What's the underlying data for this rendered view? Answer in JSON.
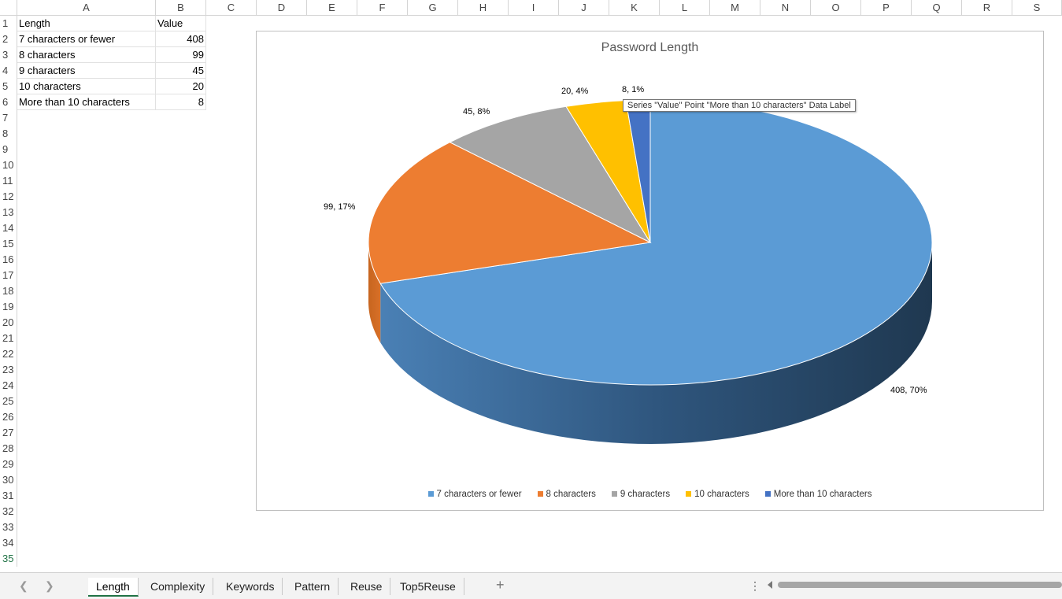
{
  "columns": [
    "A",
    "B",
    "C",
    "D",
    "E",
    "F",
    "G",
    "H",
    "I",
    "J",
    "K",
    "L",
    "M",
    "N",
    "O",
    "P",
    "Q",
    "R",
    "S"
  ],
  "rows": [
    "1",
    "2",
    "3",
    "4",
    "5",
    "6",
    "7",
    "8",
    "9",
    "10",
    "11",
    "12",
    "13",
    "14",
    "15",
    "16",
    "17",
    "18",
    "19",
    "20",
    "21",
    "22",
    "23",
    "24",
    "25",
    "26",
    "27",
    "28",
    "29",
    "30",
    "31",
    "32",
    "33",
    "34",
    "35"
  ],
  "sheet": {
    "header": {
      "a": "Length",
      "b": "Value"
    },
    "data": [
      {
        "a": "7 characters or fewer",
        "b": "408"
      },
      {
        "a": "8 characters",
        "b": "99"
      },
      {
        "a": "9 characters",
        "b": "45"
      },
      {
        "a": "10 characters",
        "b": "20"
      },
      {
        "a": "More than 10 characters",
        "b": "8"
      }
    ]
  },
  "chart_data": {
    "type": "pie",
    "title": "Password Length",
    "categories": [
      "7 characters or fewer",
      "8 characters",
      "9 characters",
      "10 characters",
      "More than 10 characters"
    ],
    "values": [
      408,
      99,
      45,
      20,
      8
    ],
    "data_labels": [
      "408, 70%",
      "99, 17%",
      "45, 8%",
      "20, 4%",
      "8, 1%"
    ],
    "colors": [
      "#5b9bd5",
      "#ed7d31",
      "#a5a5a5",
      "#ffc000",
      "#4472c4"
    ],
    "legend_position": "bottom",
    "style": "3d"
  },
  "tooltip": "Series \"Value\" Point \"More than 10 characters\" Data Label",
  "tabs": [
    {
      "label": "Length",
      "active": true
    },
    {
      "label": "Complexity"
    },
    {
      "label": "Keywords"
    },
    {
      "label": "Pattern"
    },
    {
      "label": "Reuse"
    },
    {
      "label": "Top5Reuse"
    }
  ],
  "icons": {
    "prev_sheet": "chevron-left-icon",
    "next_sheet": "chevron-right-icon",
    "add_sheet": "plus-icon",
    "more": "more-vertical-icon"
  }
}
